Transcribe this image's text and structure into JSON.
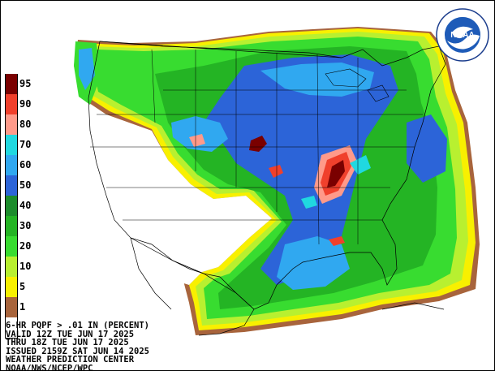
{
  "legend": {
    "bins": [
      {
        "label": "95",
        "color": "#7a0000"
      },
      {
        "label": "90",
        "color": "#f0402c"
      },
      {
        "label": "80",
        "color": "#ff9a8a"
      },
      {
        "label": "70",
        "color": "#20d8e0"
      },
      {
        "label": "60",
        "color": "#30a8f0"
      },
      {
        "label": "50",
        "color": "#2c64d8"
      },
      {
        "label": "40",
        "color": "#1c8c2c"
      },
      {
        "label": "30",
        "color": "#24b424"
      },
      {
        "label": "20",
        "color": "#38dc30"
      },
      {
        "label": "10",
        "color": "#b8f030"
      },
      {
        "label": "5",
        "color": "#f8f000"
      },
      {
        "label": "1",
        "color": "#a8643c"
      },
      {
        "label": "",
        "color": "#ffffff"
      }
    ]
  },
  "caption": {
    "line1": "6-HR PQPF > .01 IN (PERCENT)",
    "line2": "VALID 12Z TUE JUN 17 2025",
    "line3": "THRU 18Z TUE JUN 17 2025",
    "line4": "ISSUED 2159Z SAT JUN 14 2025",
    "line5": "WEATHER PREDICTION CENTER",
    "line6": "NOAA/NWS/NCEP/WPC"
  },
  "logo": {
    "text": "NOAA"
  }
}
